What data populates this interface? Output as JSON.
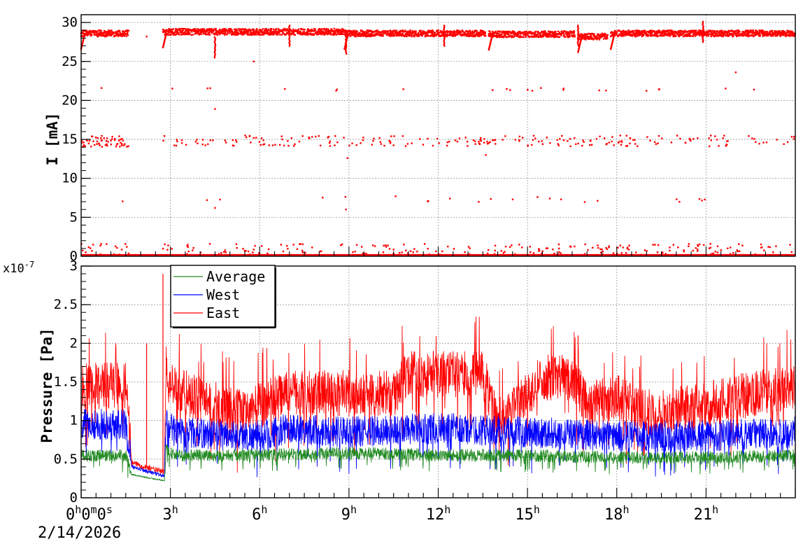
{
  "chart_data": [
    {
      "type": "scatter",
      "panel": "current",
      "ylabel": "I [mA]",
      "ylim": [
        0,
        31
      ],
      "yticks": [
        "0",
        "5",
        "10",
        "15",
        "20",
        "25",
        "30"
      ],
      "grid": true,
      "x_axis": "time of day (hours)",
      "xlim_hours": [
        0,
        24
      ],
      "series": [
        {
          "color": "#ff0000",
          "segments_main_band": [
            [
              0,
              1.6,
              28.6
            ],
            [
              2.75,
              8.85,
              28.8
            ],
            [
              8.85,
              13.6,
              28.6
            ],
            [
              13.7,
              16.6,
              28.5
            ],
            [
              16.7,
              17.7,
              28.2
            ],
            [
              17.8,
              24,
              28.6
            ]
          ],
          "band_levels": [
            0,
            7.3,
            14.8,
            21.4
          ],
          "isolated_points": [
            [
              2.2,
              28.2
            ],
            [
              4.5,
              18.9
            ],
            [
              5.8,
              25.0
            ],
            [
              8.95,
              12.6
            ],
            [
              13.6,
              13.0
            ],
            [
              4.5,
              6.2
            ],
            [
              22.0,
              23.6
            ],
            [
              8.9,
              6.0
            ]
          ]
        }
      ]
    },
    {
      "type": "line",
      "panel": "pressure",
      "ylabel": "Pressure [Pa]",
      "y_multiplier_label": "x10",
      "y_multiplier_exponent": "-7",
      "ylim": [
        0,
        3.0
      ],
      "yticks": [
        "0",
        "0.5",
        "1",
        "1.5",
        "2",
        "2.5",
        "3"
      ],
      "xticks": [
        {
          "hours": 0,
          "label": "0",
          "sup": "h",
          "rest": "0",
          "sup2": "m",
          "rest2": "0",
          "sup3": "s"
        },
        {
          "hours": 3,
          "label": "3",
          "sup": "h"
        },
        {
          "hours": 6,
          "label": "6",
          "sup": "h"
        },
        {
          "hours": 9,
          "label": "9",
          "sup": "h"
        },
        {
          "hours": 12,
          "label": "12",
          "sup": "h"
        },
        {
          "hours": 15,
          "label": "15",
          "sup": "h"
        },
        {
          "hours": 18,
          "label": "18",
          "sup": "h"
        },
        {
          "hours": 21,
          "label": "21",
          "sup": "h"
        }
      ],
      "date_label": "2/14/2026",
      "grid": true,
      "legend_position": "top-left",
      "series": [
        {
          "name": "Average",
          "color": "#228b22",
          "profile": [
            [
              0,
              0.55
            ],
            [
              1.5,
              0.55
            ],
            [
              1.7,
              0.3
            ],
            [
              2.8,
              0.22
            ],
            [
              2.85,
              0.62
            ],
            [
              3.2,
              0.55
            ],
            [
              6,
              0.55
            ],
            [
              9,
              0.58
            ],
            [
              12,
              0.55
            ],
            [
              15,
              0.55
            ],
            [
              18,
              0.52
            ],
            [
              21,
              0.52
            ],
            [
              24,
              0.55
            ]
          ],
          "noise": 0.08
        },
        {
          "name": "West",
          "color": "#0000ff",
          "profile": [
            [
              0,
              0.95
            ],
            [
              1.5,
              0.95
            ],
            [
              1.7,
              0.4
            ],
            [
              2.8,
              0.28
            ],
            [
              2.85,
              0.95
            ],
            [
              3.2,
              0.85
            ],
            [
              5.5,
              0.8
            ],
            [
              6,
              0.8
            ],
            [
              7,
              0.9
            ],
            [
              9,
              0.85
            ],
            [
              12,
              0.9
            ],
            [
              15,
              0.85
            ],
            [
              18,
              0.8
            ],
            [
              21,
              0.8
            ],
            [
              24,
              0.85
            ]
          ],
          "noise": 0.2
        },
        {
          "name": "East",
          "color": "#ff0000",
          "profile": [
            [
              0,
              1.45
            ],
            [
              1.5,
              1.45
            ],
            [
              1.7,
              0.45
            ],
            [
              2.8,
              0.33
            ],
            [
              2.85,
              1.7
            ],
            [
              3.2,
              1.4
            ],
            [
              5.2,
              1.1
            ],
            [
              6,
              1.2
            ],
            [
              7,
              1.35
            ],
            [
              9,
              1.35
            ],
            [
              10.5,
              1.35
            ],
            [
              11,
              1.6
            ],
            [
              13.5,
              1.6
            ],
            [
              14,
              1.0
            ],
            [
              14.7,
              1.2
            ],
            [
              15.5,
              1.55
            ],
            [
              16.5,
              1.55
            ],
            [
              17,
              1.2
            ],
            [
              18,
              1.3
            ],
            [
              19,
              1.1
            ],
            [
              21,
              1.2
            ],
            [
              22,
              1.3
            ],
            [
              24,
              1.45
            ]
          ],
          "noise": 0.3,
          "spikes": [
            [
              2.75,
              2.9
            ],
            [
              2.2,
              2.0
            ],
            [
              16.7,
              2.1
            ]
          ]
        }
      ]
    }
  ]
}
